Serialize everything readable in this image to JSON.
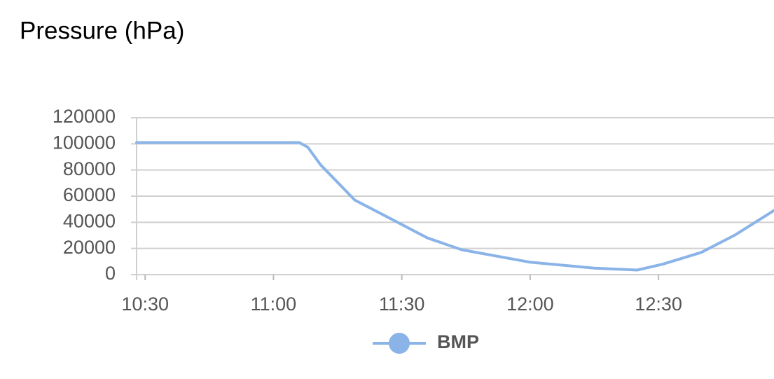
{
  "chart_data": {
    "type": "line",
    "title": "Pressure (hPa)",
    "x": [
      "10:28",
      "11:06",
      "11:08",
      "11:11",
      "11:19",
      "11:29",
      "11:36",
      "11:44",
      "12:00",
      "12:15",
      "12:25",
      "12:31",
      "12:40",
      "12:48",
      "12:57"
    ],
    "series": [
      {
        "name": "BMP",
        "color": "#8ab4e8",
        "values": [
          101000,
          101000,
          97500,
          84000,
          57000,
          40000,
          28000,
          19000,
          9500,
          5000,
          3500,
          8000,
          17000,
          30500,
          49000
        ]
      }
    ],
    "xlim": [
      "10:28",
      "12:57"
    ],
    "xticks": [
      "10:30",
      "11:00",
      "11:30",
      "12:00",
      "12:30"
    ],
    "ylim": [
      0,
      120000
    ],
    "yticks": [
      0,
      20000,
      40000,
      60000,
      80000,
      100000,
      120000
    ],
    "grid": true
  }
}
